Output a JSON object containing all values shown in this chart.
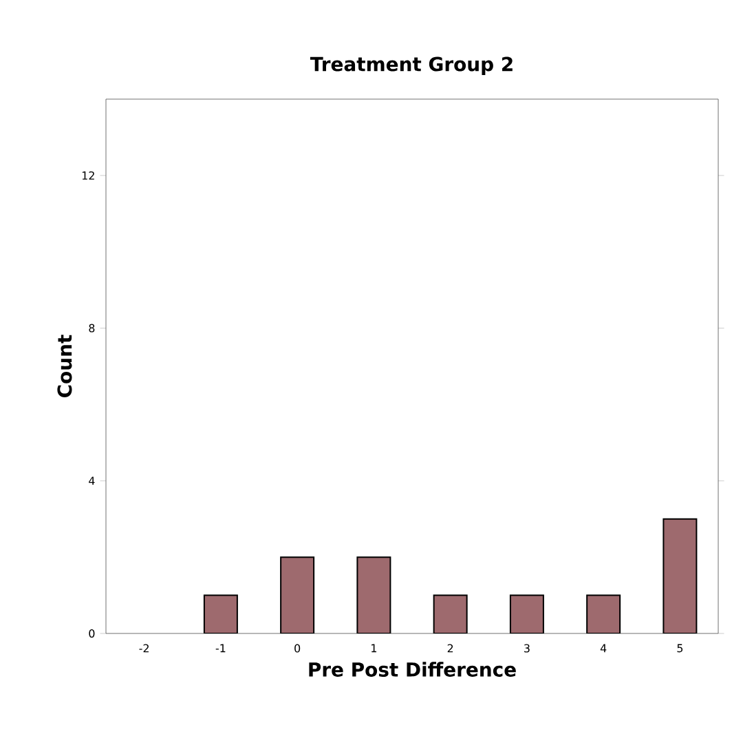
{
  "chart_data": {
    "type": "bar",
    "title": "Treatment Group 2",
    "xlabel": "Pre Post Difference",
    "ylabel": "Count",
    "categories": [
      "-2",
      "-1",
      "0",
      "1",
      "2",
      "3",
      "4",
      "5"
    ],
    "values": [
      0,
      1,
      2,
      2,
      1,
      1,
      1,
      3
    ],
    "color": "#9e6a6e",
    "ylim": [
      0,
      14
    ],
    "yticks": [
      0,
      4,
      8,
      12
    ]
  }
}
